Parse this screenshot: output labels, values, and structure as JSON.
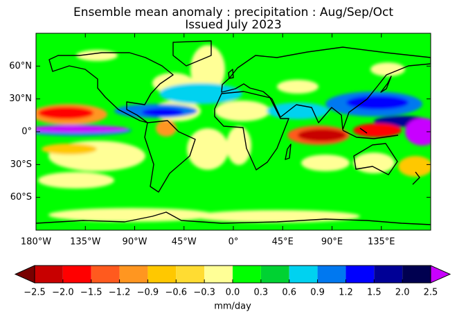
{
  "title_lines": [
    "Ensemble mean anomaly : precipitation : Aug/Sep/Oct",
    "Issued July 2023"
  ],
  "map": {
    "latlim": [
      -90,
      90
    ],
    "lonlim": [
      -180,
      180
    ],
    "lat_ticks": [
      {
        "value": 60,
        "label": "60°N"
      },
      {
        "value": 30,
        "label": "30°N"
      },
      {
        "value": 0,
        "label": "0°"
      },
      {
        "value": -30,
        "label": "30°S"
      },
      {
        "value": -60,
        "label": "60°S"
      }
    ],
    "lon_ticks": [
      {
        "value": -180,
        "label": "180°W"
      },
      {
        "value": -135,
        "label": "135°W"
      },
      {
        "value": -90,
        "label": "90°W"
      },
      {
        "value": -45,
        "label": "45°W"
      },
      {
        "value": 0,
        "label": "0°"
      },
      {
        "value": 45,
        "label": "45°E"
      },
      {
        "value": 90,
        "label": "90°E"
      },
      {
        "value": 135,
        "label": "135°E"
      }
    ]
  },
  "colorbar": {
    "label": "mm/day",
    "levels": [
      {
        "value": -2.5,
        "label": "−2.5"
      },
      {
        "value": -2.0,
        "label": "−2.0"
      },
      {
        "value": -1.5,
        "label": "−1.5"
      },
      {
        "value": -1.2,
        "label": "−1.2"
      },
      {
        "value": -0.9,
        "label": "−0.9"
      },
      {
        "value": -0.6,
        "label": "−0.6"
      },
      {
        "value": -0.3,
        "label": "−0.3"
      },
      {
        "value": 0,
        "label": "0.0"
      },
      0.3,
      0.6,
      0.9,
      1.2,
      1.5,
      {
        "value": 2.0,
        "label": "2.0"
      },
      2.5
    ],
    "colors": [
      "#c80000",
      "#ff0000",
      "#ff5a1e",
      "#ff9620",
      "#ffc800",
      "#ffdc32",
      "#ffff96",
      "#00ff00",
      "#00d232",
      "#00d2f0",
      "#0078f0",
      "#0000ff",
      "#000096",
      "#000050"
    ],
    "under_color": "#780000",
    "over_color": "#c800ff"
  }
}
